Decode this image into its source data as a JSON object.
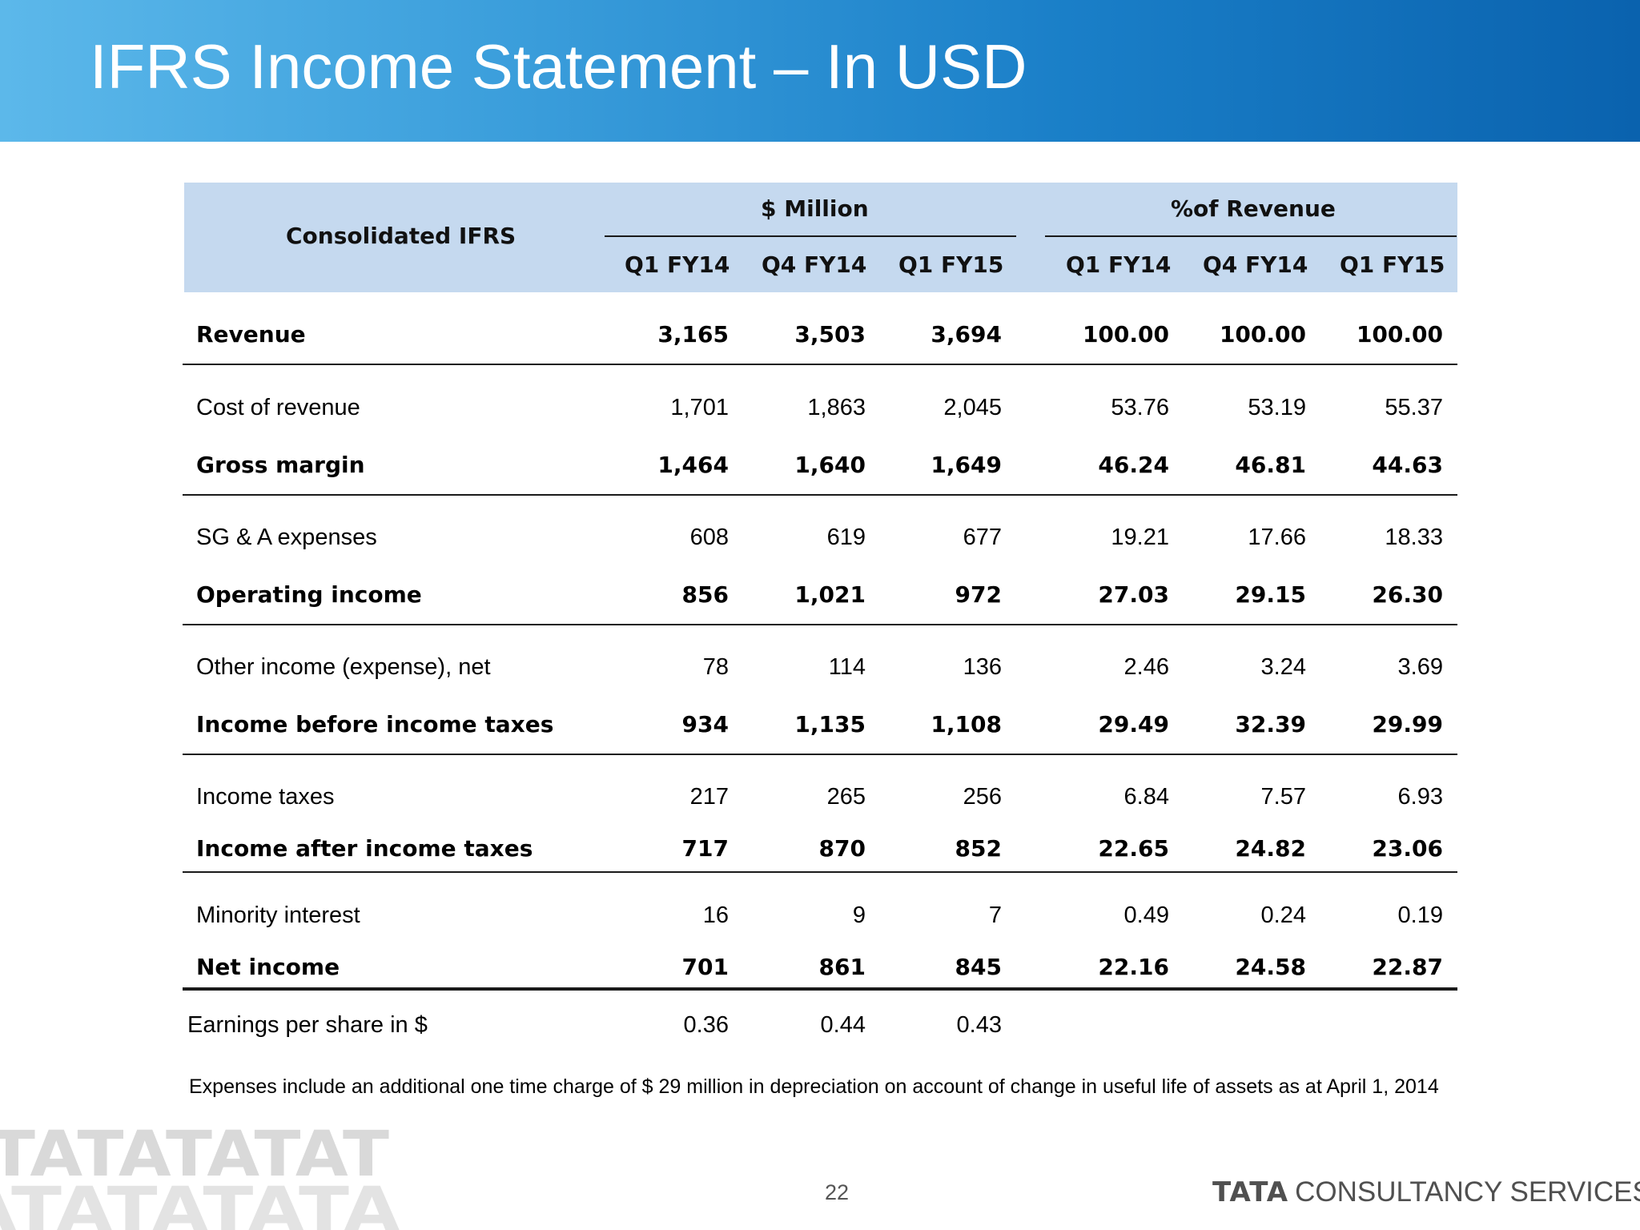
{
  "title": "IFRS Income Statement – In USD",
  "header": {
    "row_label": "Consolidated IFRS",
    "group_million": "$ Million",
    "group_pct": "%of Revenue",
    "columns": [
      "Q1 FY14",
      "Q4 FY14",
      "Q1 FY15",
      "Q1 FY14",
      "Q4 FY14",
      "Q1 FY15"
    ]
  },
  "rows": [
    {
      "label": "Revenue",
      "bold": true,
      "values": [
        "3,165",
        "3,503",
        "3,694",
        "100.00",
        "100.00",
        "100.00"
      ]
    },
    {
      "label": "Cost of revenue",
      "bold": false,
      "values": [
        "1,701",
        "1,863",
        "2,045",
        "53.76",
        "53.19",
        "55.37"
      ]
    },
    {
      "label": "Gross margin",
      "bold": true,
      "values": [
        "1,464",
        "1,640",
        "1,649",
        "46.24",
        "46.81",
        "44.63"
      ]
    },
    {
      "label": "SG & A expenses",
      "bold": false,
      "values": [
        "608",
        "619",
        "677",
        "19.21",
        "17.66",
        "18.33"
      ]
    },
    {
      "label": "Operating income",
      "bold": true,
      "values": [
        "856",
        "1,021",
        "972",
        "27.03",
        "29.15",
        "26.30"
      ]
    },
    {
      "label": "Other income (expense), net",
      "bold": false,
      "values": [
        "78",
        "114",
        "136",
        "2.46",
        "3.24",
        "3.69"
      ]
    },
    {
      "label": "Income before income taxes",
      "bold": true,
      "values": [
        "934",
        "1,135",
        "1,108",
        "29.49",
        "32.39",
        "29.99"
      ]
    },
    {
      "label": "Income taxes",
      "bold": false,
      "values": [
        "217",
        "265",
        "256",
        "6.84",
        "7.57",
        "6.93"
      ]
    },
    {
      "label": "Income after income taxes",
      "bold": true,
      "values": [
        "717",
        "870",
        "852",
        "22.65",
        "24.82",
        "23.06"
      ]
    },
    {
      "label": "Minority interest",
      "bold": false,
      "values": [
        "16",
        "9",
        "7",
        "0.49",
        "0.24",
        "0.19"
      ]
    },
    {
      "label": "Net income",
      "bold": true,
      "values": [
        "701",
        "861",
        "845",
        "22.16",
        "24.58",
        "22.87"
      ]
    },
    {
      "label": "Earnings per share in $",
      "bold": false,
      "values": [
        "0.36",
        "0.44",
        "0.43",
        "",
        "",
        ""
      ]
    }
  ],
  "note": "Expenses include an additional one time charge of $ 29 million in depreciation on account of change in useful life of assets as at April 1, 2014",
  "page_number": "22",
  "logo": {
    "brand": "TATA",
    "text": "CONSULTANCY SERVICES",
    "watermark_text": "TATATATAT"
  },
  "colors": {
    "title_bar_start": "#5cb8ea",
    "title_bar_end": "#0a62ae",
    "header_band": "#c5d9ef",
    "watermark": "#d9d9d9"
  }
}
